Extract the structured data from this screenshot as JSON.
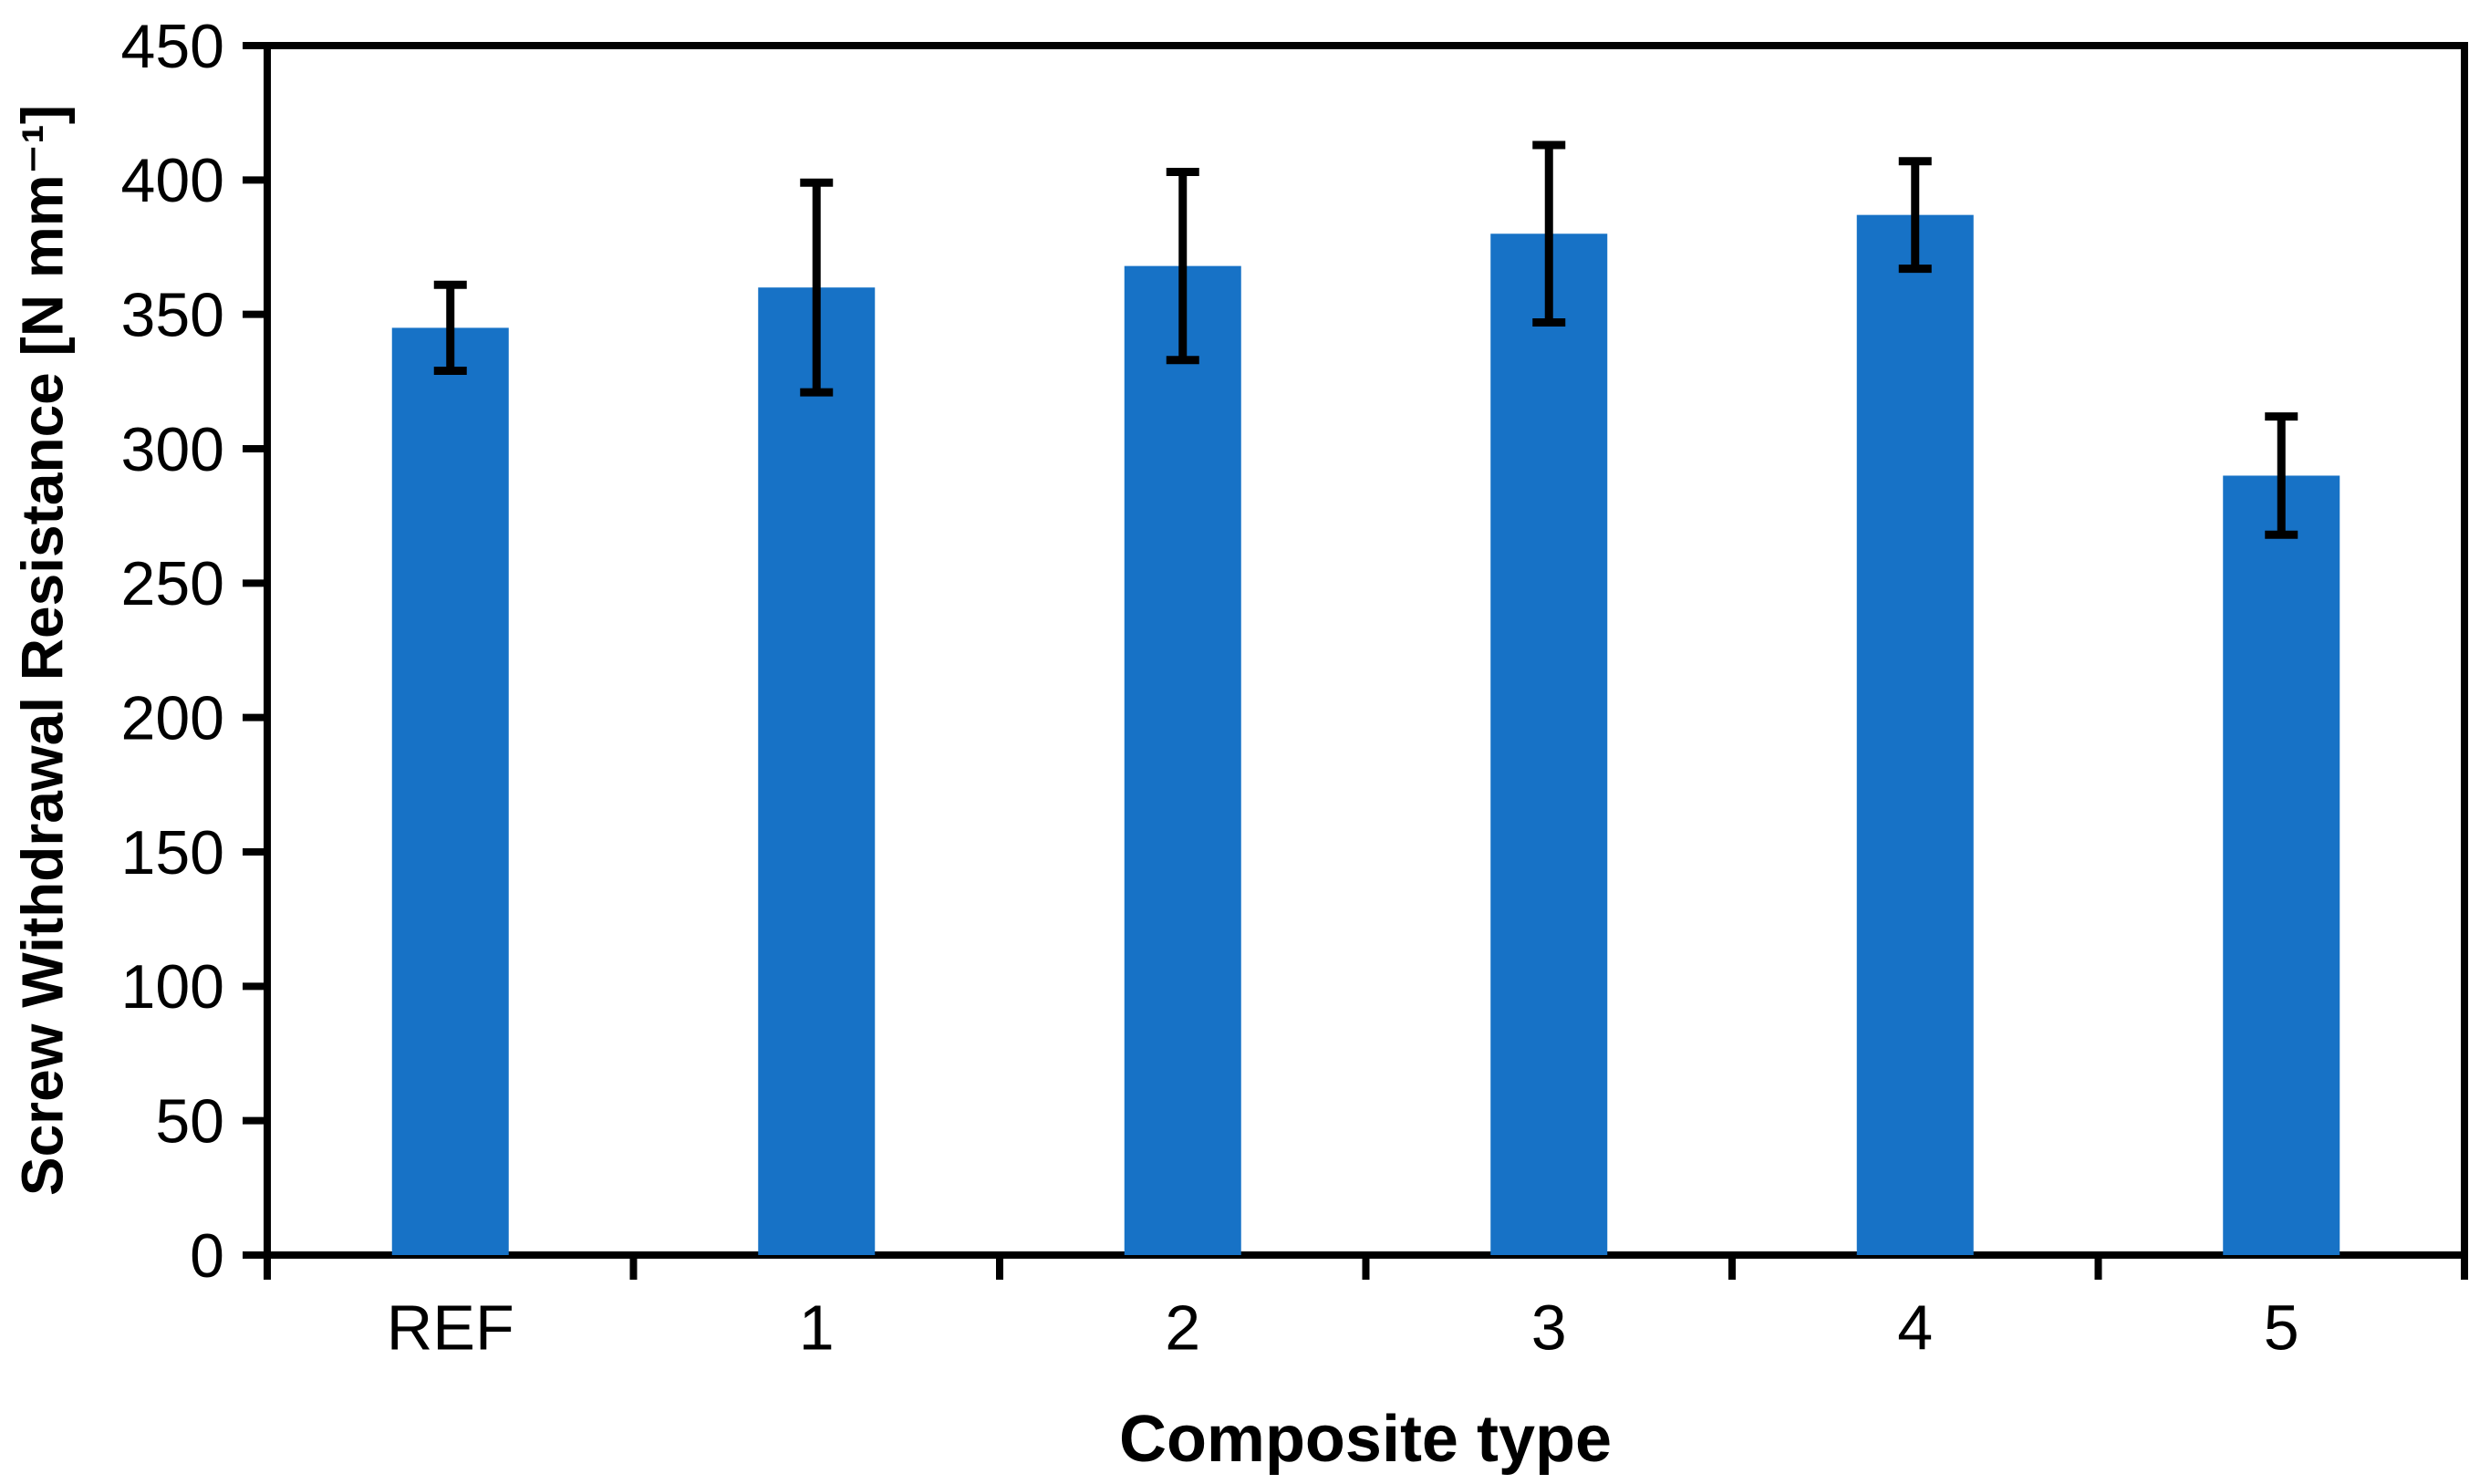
{
  "chart_data": {
    "type": "bar",
    "title": "",
    "categories": [
      "REF",
      "1",
      "2",
      "3",
      "4",
      "5"
    ],
    "series": [
      {
        "name": "Screw withdrawal resistance",
        "values": [
          345,
          360,
          368,
          380,
          387,
          290
        ],
        "errors": [
          16,
          39,
          35,
          33,
          20,
          22
        ]
      }
    ],
    "xlabel": "Composite type",
    "ylabel": "Screw Withdrawal Resistance [N mm⁻¹]",
    "ylim": [
      0,
      450
    ],
    "ytick_step": 50,
    "yticks": [
      0,
      50,
      100,
      150,
      200,
      250,
      300,
      350,
      400,
      450
    ],
    "grid": false,
    "legend_position": "none",
    "error_bars": "both",
    "colors": {
      "bar": "#1772C6",
      "error_bar": "#000000",
      "axis": "#000000",
      "background": "#FFFFFF"
    }
  }
}
